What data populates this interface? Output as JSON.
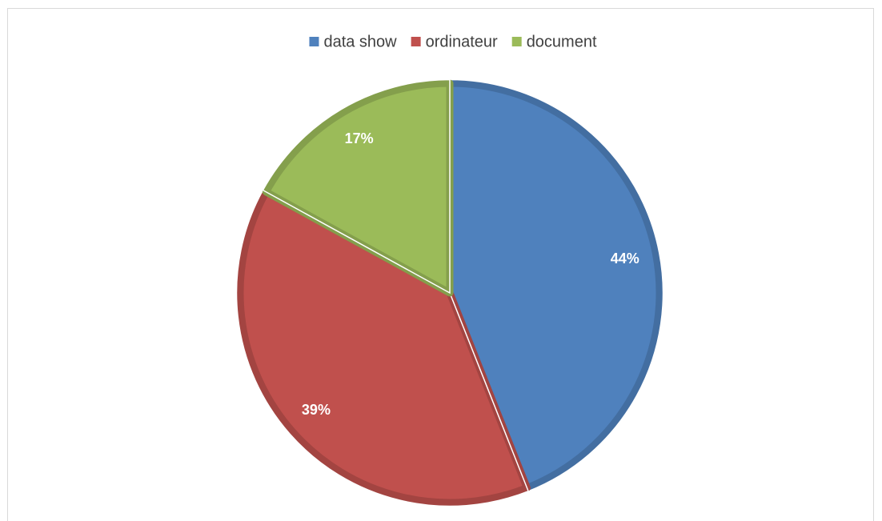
{
  "chart_data": {
    "type": "pie",
    "categories": [
      "data show",
      "ordinateur",
      "document"
    ],
    "values": [
      44,
      39,
      17
    ],
    "value_labels": [
      "44%",
      "39%",
      "17%"
    ],
    "colors": [
      "#4f81bd",
      "#c0504d",
      "#9bbb59"
    ],
    "legend": "top"
  }
}
